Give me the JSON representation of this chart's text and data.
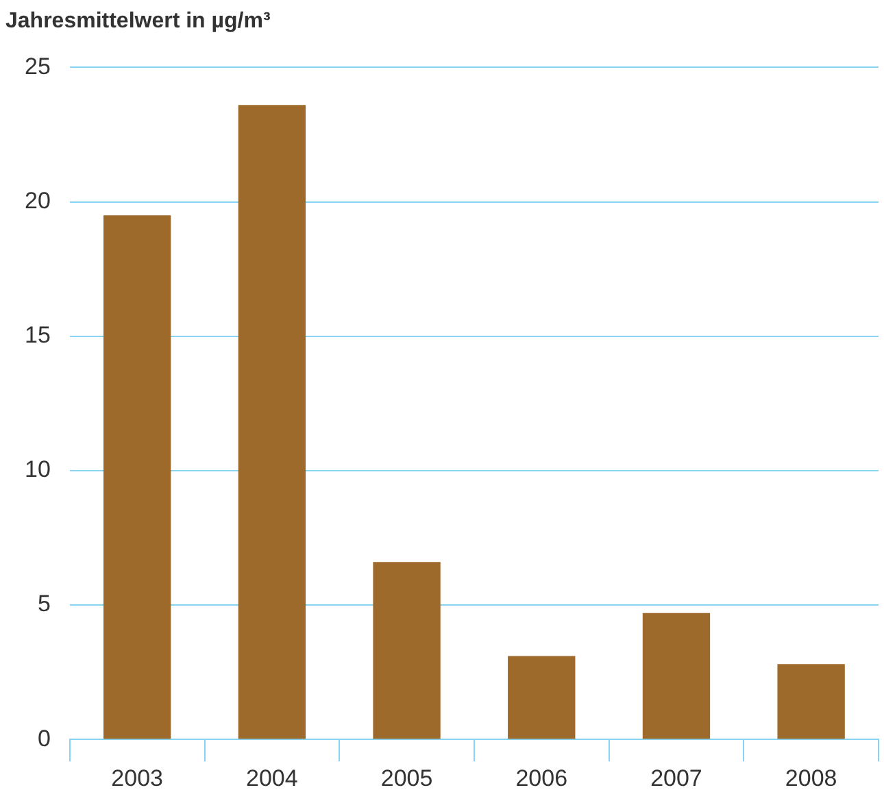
{
  "chart_data": {
    "type": "bar",
    "ylabel": "Jahresmittelwert in µg/m³",
    "categories": [
      "2003",
      "2004",
      "2005",
      "2006",
      "2007",
      "2008"
    ],
    "values": [
      19.5,
      23.6,
      6.6,
      3.1,
      4.7,
      2.8
    ],
    "color": "#9e6a2b",
    "ylim": [
      0,
      25
    ],
    "yticks": [
      0,
      5,
      10,
      15,
      20,
      25
    ],
    "grid": "y"
  }
}
